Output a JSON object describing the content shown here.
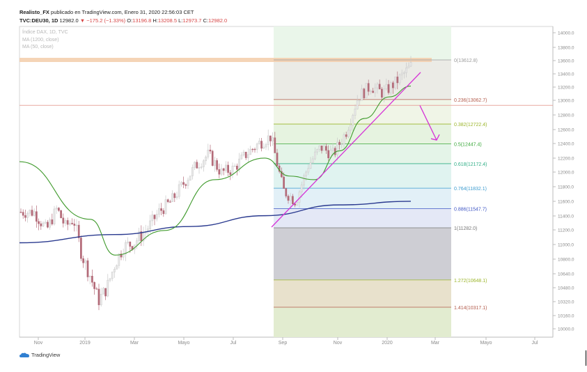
{
  "header": {
    "author": "Realisto_FX",
    "published": "publicado en TradingView.com, Enero 31, 2020 22:56:03 CET",
    "symbol": "TVC:DEU30, 1D",
    "last": "12982.0",
    "change": "▼ −175.2 (−1.33%)",
    "o_label": "O:",
    "o_value": "13196.8",
    "h_label": "H:",
    "h_value": "13208.5",
    "l_label": "L:",
    "l_value": "12973.7",
    "c_label": "C:",
    "c_value": "12982.0"
  },
  "legend": {
    "name": "Índice DAX, 1D, TVC",
    "ma1": "MA (1200, close)",
    "ma2": "MA (50, close)"
  },
  "brand": {
    "name": "TradingView"
  },
  "colors": {
    "up": "#cfcfcf",
    "down": "#b56b76",
    "ma200": "#2a3a8f",
    "ma50": "#3f9a2c",
    "trendline": "#d633d6",
    "arrow": "#d633d6"
  },
  "chart_data": {
    "type": "candlestick",
    "yaxis": {
      "min": 10000,
      "max": 14000,
      "ticks": [
        "14000.0",
        "13800.0",
        "13600.0",
        "13400.0",
        "13200.0",
        "13000.0",
        "12800.0",
        "12600.0",
        "12400.0",
        "12200.0",
        "12000.0",
        "11800.0",
        "11600.0",
        "11400.0",
        "11200.0",
        "11000.0",
        "10800.0",
        "10640.0",
        "10480.0",
        "10320.0",
        "10160.0",
        "10000.0"
      ]
    },
    "xaxis": {
      "ticks": [
        "Nov",
        "2019",
        "Mar",
        "Mayo",
        "Jul",
        "Sep",
        "Nov",
        "2020",
        "Mar",
        "Mayo",
        "Jul"
      ]
    },
    "fibonacci": [
      {
        "label": "0(13612.8)",
        "value": 13612.8,
        "color": "#9a9a9a"
      },
      {
        "label": "0.236(13062.7)",
        "value": 13062.7,
        "color": "#b25a4a"
      },
      {
        "label": "0.382(12722.4)",
        "value": 12722.4,
        "color": "#9bb52a"
      },
      {
        "label": "0.5(12447.4)",
        "value": 12447.4,
        "color": "#3aa83a"
      },
      {
        "label": "0.618(12172.4)",
        "value": 12172.4,
        "color": "#2fae86"
      },
      {
        "label": "0.764(11832.1)",
        "value": 11832.1,
        "color": "#3b9bcf"
      },
      {
        "label": "0.886(11547.7)",
        "value": 11547.7,
        "color": "#3f56c4"
      },
      {
        "label": "1(11282.0)",
        "value": 11282.0,
        "color": "#777777"
      },
      {
        "label": "1.272(10648.1)",
        "value": 10648.1,
        "color": "#9bb52a"
      },
      {
        "label": "1.414(10317.1)",
        "value": 10317.1,
        "color": "#b25a4a"
      }
    ],
    "resistance": 13612.8,
    "last_price": 12982.0,
    "price_path": [
      [
        "2018-10",
        11500
      ],
      [
        "2018-10",
        11250
      ],
      [
        "2018-11",
        11550
      ],
      [
        "2018-11",
        11300
      ],
      [
        "2018-11",
        11400
      ],
      [
        "2018-12",
        10950
      ],
      [
        "2018-12",
        10700
      ],
      [
        "2018-12",
        10400
      ],
      [
        "2019-01",
        10550
      ],
      [
        "2019-01",
        10850
      ],
      [
        "2019-01",
        11050
      ],
      [
        "2019-02",
        11100
      ],
      [
        "2019-02",
        11250
      ],
      [
        "2019-03",
        11500
      ],
      [
        "2019-03",
        11650
      ],
      [
        "2019-04",
        11900
      ],
      [
        "2019-04",
        12150
      ],
      [
        "2019-05",
        12300
      ],
      [
        "2019-05",
        12050
      ],
      [
        "2019-06",
        12100
      ],
      [
        "2019-06",
        12300
      ],
      [
        "2019-07",
        12450
      ],
      [
        "2019-07",
        12550
      ],
      [
        "2019-08",
        11800
      ],
      [
        "2019-08",
        11650
      ],
      [
        "2019-09",
        12150
      ],
      [
        "2019-09",
        12400
      ],
      [
        "2019-10",
        12300
      ],
      [
        "2019-10",
        12600
      ],
      [
        "2019-11",
        13100
      ],
      [
        "2019-11",
        13250
      ],
      [
        "2019-12",
        13150
      ],
      [
        "2019-12",
        13300
      ],
      [
        "2020-01",
        13450
      ],
      [
        "2020-01",
        13580
      ],
      [
        "2020-01",
        13000
      ]
    ],
    "ma200": [
      [
        "2018-10",
        11100
      ],
      [
        "2019-01",
        11200
      ],
      [
        "2019-04",
        11300
      ],
      [
        "2019-07",
        11450
      ],
      [
        "2019-10",
        11600
      ],
      [
        "2020-01",
        11650
      ]
    ],
    "ma50": [
      [
        "2018-10",
        12200
      ],
      [
        "2018-12",
        11400
      ],
      [
        "2019-01",
        10950
      ],
      [
        "2019-03",
        11250
      ],
      [
        "2019-05",
        11950
      ],
      [
        "2019-07",
        12250
      ],
      [
        "2019-08",
        12000
      ],
      [
        "2019-09",
        11950
      ],
      [
        "2019-10",
        12350
      ],
      [
        "2019-11",
        12800
      ],
      [
        "2019-12",
        13100
      ],
      [
        "2020-01",
        13250
      ]
    ]
  }
}
